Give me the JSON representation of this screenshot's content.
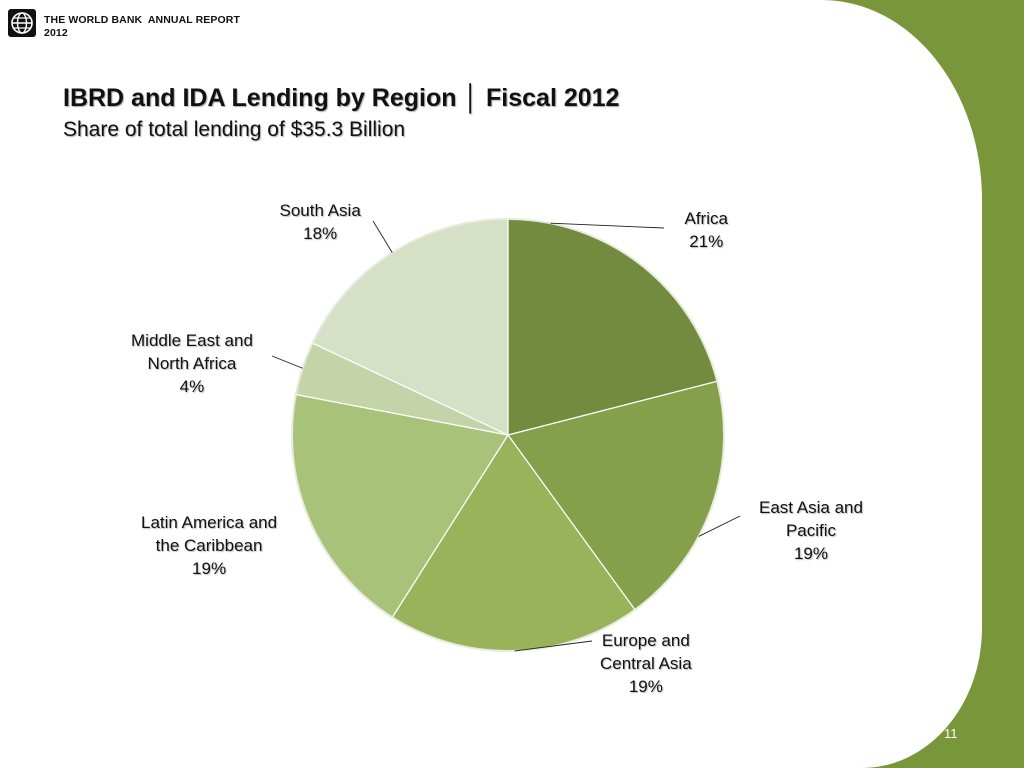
{
  "header": {
    "line1": "THE WORLD BANK  ANNUAL REPORT",
    "line2": "2012"
  },
  "chart_data": {
    "type": "pie",
    "title": "IBRD and IDA Lending by Region │ Fiscal 2012",
    "subtitle": "Share of total lending of $35.3 Billion",
    "slices": [
      {
        "label": "Africa",
        "value": 21,
        "pct_label": "21%",
        "color": "#728b3e"
      },
      {
        "label": "East Asia and\nPacific",
        "value": 19,
        "pct_label": "19%",
        "color": "#85a04a"
      },
      {
        "label": "Europe and\nCentral Asia",
        "value": 19,
        "pct_label": "19%",
        "color": "#98b35a"
      },
      {
        "label": "Latin America and\nthe Caribbean",
        "value": 19,
        "pct_label": "19%",
        "color": "#a9c27a"
      },
      {
        "label": "Middle East and\nNorth Africa",
        "value": 4,
        "pct_label": "4%",
        "color": "#c4d4a8"
      },
      {
        "label": "South Asia",
        "value": 18,
        "pct_label": "18%",
        "color": "#d6e0c6"
      }
    ]
  },
  "page_number": "11",
  "colors": {
    "accent_green": "#7a963a",
    "background": "#ffffff"
  },
  "icons": {
    "logo": "world-bank-globe-icon"
  }
}
